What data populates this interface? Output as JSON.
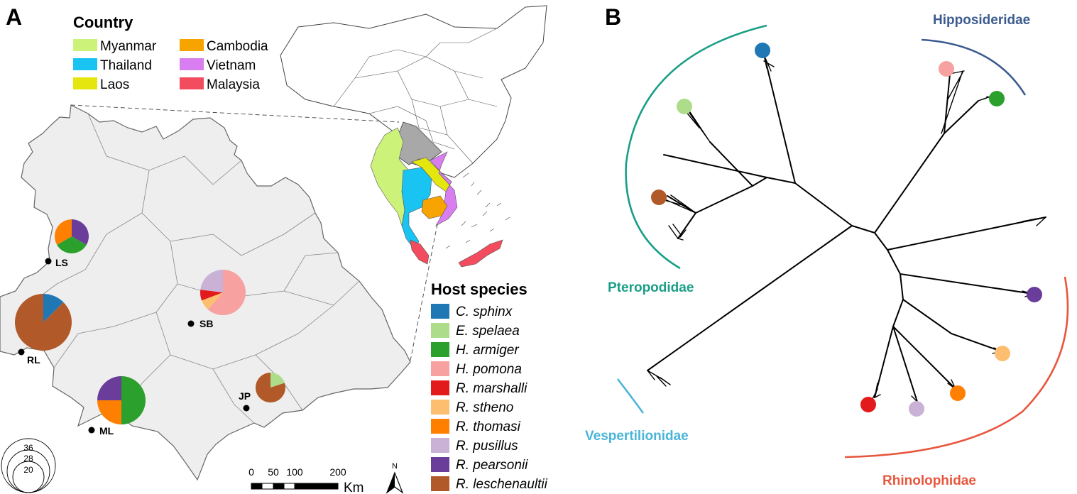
{
  "panels": {
    "a_label": "A",
    "b_label": "B"
  },
  "country_legend": {
    "title": "Country",
    "items": [
      {
        "label": "Myanmar",
        "color": "#ccf27a"
      },
      {
        "label": "Thailand",
        "color": "#19c3f2"
      },
      {
        "label": "Laos",
        "color": "#e6e60f"
      },
      {
        "label": "Cambodia",
        "color": "#f7a400"
      },
      {
        "label": "Vietnam",
        "color": "#d97ef0"
      },
      {
        "label": "Malaysia",
        "color": "#f24c5e"
      }
    ]
  },
  "host_legend": {
    "title": "Host species",
    "items": [
      {
        "label": "C. sphinx",
        "color": "#1f77b4"
      },
      {
        "label": "E. spelaea",
        "color": "#addc8a"
      },
      {
        "label": "H. armiger",
        "color": "#2ca02c"
      },
      {
        "label": "H. pomona",
        "color": "#f7a1a1"
      },
      {
        "label": "R. marshalli",
        "color": "#e31a1c"
      },
      {
        "label": "R. stheno",
        "color": "#fdbf6f"
      },
      {
        "label": "R. thomasi",
        "color": "#ff7f00"
      },
      {
        "label": "R. pusillus",
        "color": "#cab2d6"
      },
      {
        "label": "R. pearsonii",
        "color": "#6a3d9a"
      },
      {
        "label": "R. leschenaultii",
        "color": "#b15928"
      }
    ]
  },
  "sites": [
    {
      "id": "LS",
      "label": "LS",
      "species": [
        [
          "R. pearsonii",
          1
        ],
        [
          "H. armiger",
          1
        ],
        [
          "R. thomasi",
          1
        ]
      ]
    },
    {
      "id": "RL",
      "label": "RL",
      "species": [
        [
          "C. sphinx",
          1
        ],
        [
          "R. leschenaultii",
          7
        ]
      ]
    },
    {
      "id": "SB",
      "label": "SB",
      "species": [
        [
          "H. pomona",
          8
        ],
        [
          "R. stheno",
          1
        ],
        [
          "R. marshalli",
          1
        ],
        [
          "R. pusillus",
          3
        ]
      ]
    },
    {
      "id": "ML",
      "label": "ML",
      "species": [
        [
          "H. armiger",
          2
        ],
        [
          "R. thomasi",
          1
        ],
        [
          "R. pearsonii",
          1
        ]
      ]
    },
    {
      "id": "JP",
      "label": "JP",
      "species": [
        [
          "E. spelaea",
          1
        ],
        [
          "R. leschenaultii",
          4
        ]
      ]
    }
  ],
  "size_legend": {
    "values": [
      "36",
      "28",
      "20"
    ]
  },
  "scale_bar": {
    "ticks": [
      "0",
      "50",
      "100",
      "200"
    ],
    "unit": "Km",
    "north": "N"
  },
  "clades": {
    "pteropodidae": {
      "label": "Pteropodidae",
      "color": "#1a9e87"
    },
    "hipposideridae": {
      "label": "Hipposideridae",
      "color": "#3c5b8f"
    },
    "vespertilionidae": {
      "label": "Vespertilionidae",
      "color": "#4ab5d9"
    },
    "rhinolophidae": {
      "label": "Rhinolophidae",
      "color": "#e8563d"
    }
  },
  "colors": {
    "region_fill": "#eeeeee",
    "yunnan_fill": "#a8a8a8"
  }
}
